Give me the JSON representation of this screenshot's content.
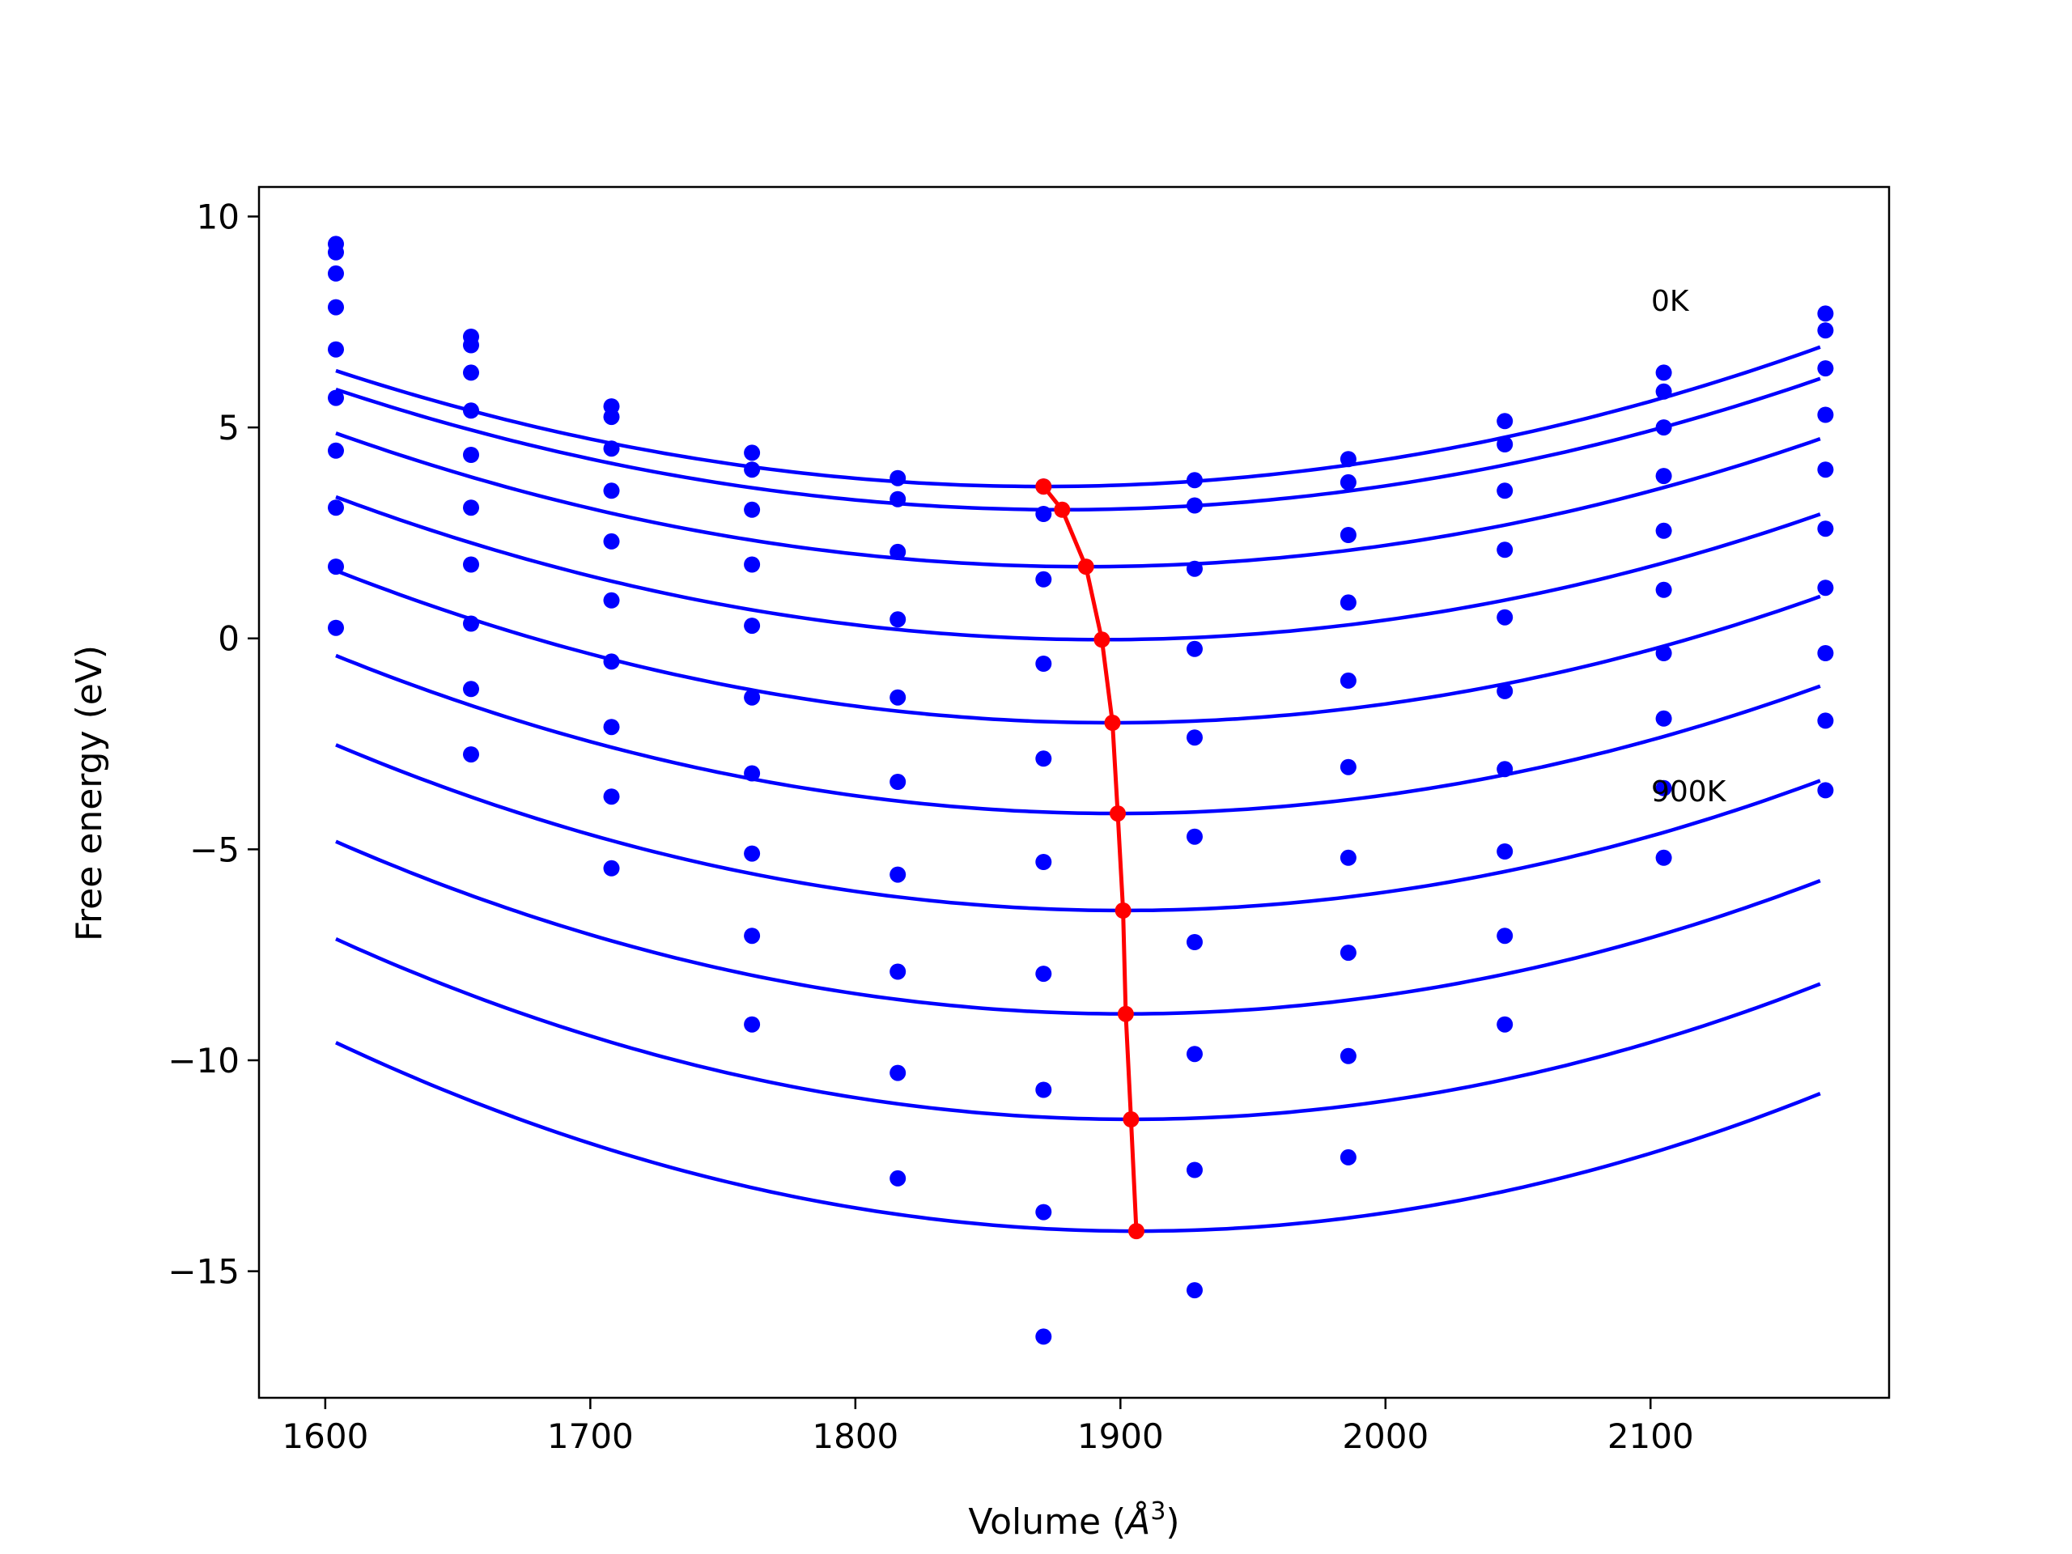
{
  "chart_data": {
    "type": "scatter",
    "title": "",
    "xlabel": "Volume (Å³)",
    "xlabel_parts": {
      "main": "Volume (",
      "symbol": "Å",
      "exponent": "3",
      "close": ")"
    },
    "ylabel": "Free energy (eV)",
    "xlim": [
      1575,
      2190
    ],
    "ylim": [
      -18.0,
      10.7
    ],
    "xticks": [
      1600,
      1700,
      1800,
      1900,
      2000,
      2100
    ],
    "yticks": [
      10,
      5,
      0,
      -5,
      -10,
      -15
    ],
    "xtick_labels": [
      "1600",
      "1700",
      "1800",
      "1900",
      "2000",
      "2100"
    ],
    "ytick_labels": [
      "10",
      "5",
      "0",
      "−5",
      "−10",
      "−15"
    ],
    "grid": false,
    "legend": "none",
    "annotations": [
      {
        "text": "0K",
        "x": 2103,
        "y": 7.9
      },
      {
        "text": "900K",
        "x": 2103,
        "y": -3.4
      }
    ],
    "x": [
      1604,
      1655,
      1708,
      1761,
      1816,
      1871,
      1928,
      1986,
      2045,
      2105,
      2166
    ],
    "series": [
      {
        "color": "#0000ff",
        "style": "markers",
        "values": [
          9.35,
          7.15,
          5.5,
          4.4,
          3.8,
          3.6,
          3.75,
          4.25,
          5.15,
          6.3,
          7.7
        ]
      },
      {
        "color": "#0000ff",
        "style": "markers",
        "values": [
          9.15,
          6.95,
          5.25,
          4.0,
          3.3,
          2.95,
          3.15,
          3.7,
          4.6,
          5.85,
          7.3
        ]
      },
      {
        "color": "#0000ff",
        "style": "markers",
        "values": [
          8.65,
          6.3,
          4.5,
          3.05,
          2.05,
          1.4,
          1.65,
          2.45,
          3.5,
          5.0,
          6.4
        ]
      },
      {
        "color": "#0000ff",
        "style": "markers",
        "values": [
          7.85,
          5.4,
          3.5,
          1.75,
          0.45,
          -0.6,
          -0.25,
          0.85,
          2.1,
          3.85,
          5.3
        ]
      },
      {
        "color": "#0000ff",
        "style": "markers",
        "values": [
          6.85,
          4.35,
          2.3,
          0.3,
          -1.4,
          -2.85,
          -2.35,
          -1.0,
          0.5,
          2.55,
          4.0
        ]
      },
      {
        "color": "#0000ff",
        "style": "markers",
        "values": [
          5.7,
          3.1,
          0.9,
          -1.4,
          -3.4,
          -5.3,
          -4.7,
          -3.05,
          -1.25,
          1.15,
          2.6
        ]
      },
      {
        "color": "#0000ff",
        "style": "markers",
        "values": [
          4.45,
          1.75,
          -0.55,
          -3.2,
          -5.6,
          -7.95,
          -7.2,
          -5.2,
          -3.1,
          -0.35,
          1.2
        ]
      },
      {
        "color": "#0000ff",
        "style": "markers",
        "values": [
          3.1,
          0.35,
          -2.1,
          -5.1,
          -7.9,
          -10.7,
          -9.85,
          -7.45,
          -5.05,
          -1.9,
          -0.35
        ]
      },
      {
        "color": "#0000ff",
        "style": "markers",
        "values": [
          1.7,
          -1.2,
          -3.75,
          -7.05,
          -10.3,
          -13.6,
          -12.6,
          -9.9,
          -7.05,
          -3.55,
          -1.95
        ]
      },
      {
        "color": "#0000ff",
        "style": "markers",
        "values": [
          0.25,
          -2.75,
          -5.45,
          -9.15,
          -12.8,
          -16.55,
          -15.45,
          -12.3,
          -9.15,
          -5.2,
          -3.6
        ]
      }
    ],
    "fits": [
      {
        "color": "#0000ff",
        "style": "line",
        "curvature": 3.85e-05,
        "min_x": 1871,
        "min_y": 3.6
      },
      {
        "color": "#0000ff",
        "style": "line",
        "curvature": 3.8e-05,
        "min_x": 1878,
        "min_y": 3.05
      },
      {
        "color": "#0000ff",
        "style": "line",
        "curvature": 3.95e-05,
        "min_x": 1887,
        "min_y": 1.7
      },
      {
        "color": "#0000ff",
        "style": "line",
        "curvature": 4.05e-05,
        "min_x": 1893,
        "min_y": -0.03
      },
      {
        "color": "#0000ff",
        "style": "line",
        "curvature": 4.2e-05,
        "min_x": 1897,
        "min_y": -2.0
      },
      {
        "color": "#0000ff",
        "style": "line",
        "curvature": 4.3e-05,
        "min_x": 1899,
        "min_y": -4.15
      },
      {
        "color": "#0000ff",
        "style": "line",
        "curvature": 4.45e-05,
        "min_x": 1901,
        "min_y": -6.45
      },
      {
        "color": "#0000ff",
        "style": "line",
        "curvature": 4.6e-05,
        "min_x": 1902,
        "min_y": -8.9
      },
      {
        "color": "#0000ff",
        "style": "line",
        "curvature": 4.75e-05,
        "min_x": 1904,
        "min_y": -11.4
      },
      {
        "color": "#0000ff",
        "style": "line",
        "curvature": 4.9e-05,
        "min_x": 1906,
        "min_y": -14.05
      }
    ],
    "minima_path": {
      "color": "#ff0000",
      "style": "line+markers",
      "x": [
        1871,
        1878,
        1887,
        1893,
        1897,
        1899,
        1901,
        1902,
        1904,
        1906
      ],
      "y": [
        3.6,
        3.05,
        1.7,
        -0.03,
        -2.0,
        -4.15,
        -6.45,
        -8.9,
        -11.4,
        -14.05
      ]
    }
  }
}
